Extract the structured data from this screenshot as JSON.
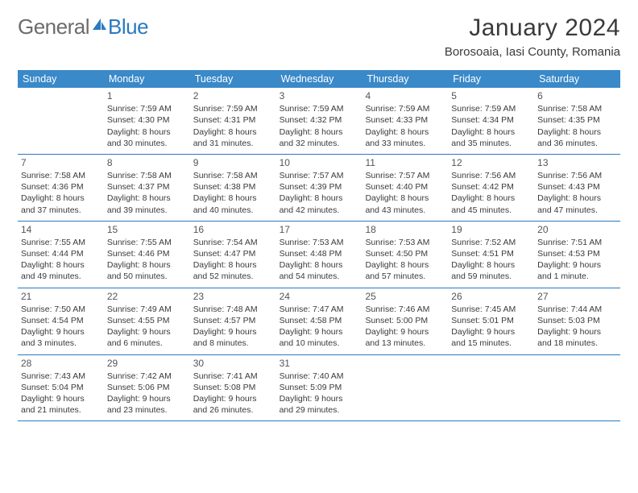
{
  "brand": {
    "part1": "General",
    "part2": "Blue"
  },
  "title": "January 2024",
  "location": "Borosoaia, Iasi County, Romania",
  "colors": {
    "header_bg": "#3a89c9",
    "header_fg": "#ffffff",
    "divider": "#2a7ac0",
    "text": "#3a3a3a",
    "brand_gray": "#6c6c6c",
    "brand_blue": "#2a7ac0"
  },
  "dow": [
    "Sunday",
    "Monday",
    "Tuesday",
    "Wednesday",
    "Thursday",
    "Friday",
    "Saturday"
  ],
  "typography": {
    "title_fontsize": 30,
    "location_fontsize": 15,
    "dow_fontsize": 12.5,
    "cell_fontsize": 10.5,
    "daynum_fontsize": 12,
    "font_family": "Arial"
  },
  "weeks": [
    [
      {
        "n": "",
        "sunrise": "",
        "sunset": "",
        "daylight": ""
      },
      {
        "n": "1",
        "sunrise": "Sunrise: 7:59 AM",
        "sunset": "Sunset: 4:30 PM",
        "daylight": "Daylight: 8 hours and 30 minutes."
      },
      {
        "n": "2",
        "sunrise": "Sunrise: 7:59 AM",
        "sunset": "Sunset: 4:31 PM",
        "daylight": "Daylight: 8 hours and 31 minutes."
      },
      {
        "n": "3",
        "sunrise": "Sunrise: 7:59 AM",
        "sunset": "Sunset: 4:32 PM",
        "daylight": "Daylight: 8 hours and 32 minutes."
      },
      {
        "n": "4",
        "sunrise": "Sunrise: 7:59 AM",
        "sunset": "Sunset: 4:33 PM",
        "daylight": "Daylight: 8 hours and 33 minutes."
      },
      {
        "n": "5",
        "sunrise": "Sunrise: 7:59 AM",
        "sunset": "Sunset: 4:34 PM",
        "daylight": "Daylight: 8 hours and 35 minutes."
      },
      {
        "n": "6",
        "sunrise": "Sunrise: 7:58 AM",
        "sunset": "Sunset: 4:35 PM",
        "daylight": "Daylight: 8 hours and 36 minutes."
      }
    ],
    [
      {
        "n": "7",
        "sunrise": "Sunrise: 7:58 AM",
        "sunset": "Sunset: 4:36 PM",
        "daylight": "Daylight: 8 hours and 37 minutes."
      },
      {
        "n": "8",
        "sunrise": "Sunrise: 7:58 AM",
        "sunset": "Sunset: 4:37 PM",
        "daylight": "Daylight: 8 hours and 39 minutes."
      },
      {
        "n": "9",
        "sunrise": "Sunrise: 7:58 AM",
        "sunset": "Sunset: 4:38 PM",
        "daylight": "Daylight: 8 hours and 40 minutes."
      },
      {
        "n": "10",
        "sunrise": "Sunrise: 7:57 AM",
        "sunset": "Sunset: 4:39 PM",
        "daylight": "Daylight: 8 hours and 42 minutes."
      },
      {
        "n": "11",
        "sunrise": "Sunrise: 7:57 AM",
        "sunset": "Sunset: 4:40 PM",
        "daylight": "Daylight: 8 hours and 43 minutes."
      },
      {
        "n": "12",
        "sunrise": "Sunrise: 7:56 AM",
        "sunset": "Sunset: 4:42 PM",
        "daylight": "Daylight: 8 hours and 45 minutes."
      },
      {
        "n": "13",
        "sunrise": "Sunrise: 7:56 AM",
        "sunset": "Sunset: 4:43 PM",
        "daylight": "Daylight: 8 hours and 47 minutes."
      }
    ],
    [
      {
        "n": "14",
        "sunrise": "Sunrise: 7:55 AM",
        "sunset": "Sunset: 4:44 PM",
        "daylight": "Daylight: 8 hours and 49 minutes."
      },
      {
        "n": "15",
        "sunrise": "Sunrise: 7:55 AM",
        "sunset": "Sunset: 4:46 PM",
        "daylight": "Daylight: 8 hours and 50 minutes."
      },
      {
        "n": "16",
        "sunrise": "Sunrise: 7:54 AM",
        "sunset": "Sunset: 4:47 PM",
        "daylight": "Daylight: 8 hours and 52 minutes."
      },
      {
        "n": "17",
        "sunrise": "Sunrise: 7:53 AM",
        "sunset": "Sunset: 4:48 PM",
        "daylight": "Daylight: 8 hours and 54 minutes."
      },
      {
        "n": "18",
        "sunrise": "Sunrise: 7:53 AM",
        "sunset": "Sunset: 4:50 PM",
        "daylight": "Daylight: 8 hours and 57 minutes."
      },
      {
        "n": "19",
        "sunrise": "Sunrise: 7:52 AM",
        "sunset": "Sunset: 4:51 PM",
        "daylight": "Daylight: 8 hours and 59 minutes."
      },
      {
        "n": "20",
        "sunrise": "Sunrise: 7:51 AM",
        "sunset": "Sunset: 4:53 PM",
        "daylight": "Daylight: 9 hours and 1 minute."
      }
    ],
    [
      {
        "n": "21",
        "sunrise": "Sunrise: 7:50 AM",
        "sunset": "Sunset: 4:54 PM",
        "daylight": "Daylight: 9 hours and 3 minutes."
      },
      {
        "n": "22",
        "sunrise": "Sunrise: 7:49 AM",
        "sunset": "Sunset: 4:55 PM",
        "daylight": "Daylight: 9 hours and 6 minutes."
      },
      {
        "n": "23",
        "sunrise": "Sunrise: 7:48 AM",
        "sunset": "Sunset: 4:57 PM",
        "daylight": "Daylight: 9 hours and 8 minutes."
      },
      {
        "n": "24",
        "sunrise": "Sunrise: 7:47 AM",
        "sunset": "Sunset: 4:58 PM",
        "daylight": "Daylight: 9 hours and 10 minutes."
      },
      {
        "n": "25",
        "sunrise": "Sunrise: 7:46 AM",
        "sunset": "Sunset: 5:00 PM",
        "daylight": "Daylight: 9 hours and 13 minutes."
      },
      {
        "n": "26",
        "sunrise": "Sunrise: 7:45 AM",
        "sunset": "Sunset: 5:01 PM",
        "daylight": "Daylight: 9 hours and 15 minutes."
      },
      {
        "n": "27",
        "sunrise": "Sunrise: 7:44 AM",
        "sunset": "Sunset: 5:03 PM",
        "daylight": "Daylight: 9 hours and 18 minutes."
      }
    ],
    [
      {
        "n": "28",
        "sunrise": "Sunrise: 7:43 AM",
        "sunset": "Sunset: 5:04 PM",
        "daylight": "Daylight: 9 hours and 21 minutes."
      },
      {
        "n": "29",
        "sunrise": "Sunrise: 7:42 AM",
        "sunset": "Sunset: 5:06 PM",
        "daylight": "Daylight: 9 hours and 23 minutes."
      },
      {
        "n": "30",
        "sunrise": "Sunrise: 7:41 AM",
        "sunset": "Sunset: 5:08 PM",
        "daylight": "Daylight: 9 hours and 26 minutes."
      },
      {
        "n": "31",
        "sunrise": "Sunrise: 7:40 AM",
        "sunset": "Sunset: 5:09 PM",
        "daylight": "Daylight: 9 hours and 29 minutes."
      },
      {
        "n": "",
        "sunrise": "",
        "sunset": "",
        "daylight": ""
      },
      {
        "n": "",
        "sunrise": "",
        "sunset": "",
        "daylight": ""
      },
      {
        "n": "",
        "sunrise": "",
        "sunset": "",
        "daylight": ""
      }
    ]
  ]
}
